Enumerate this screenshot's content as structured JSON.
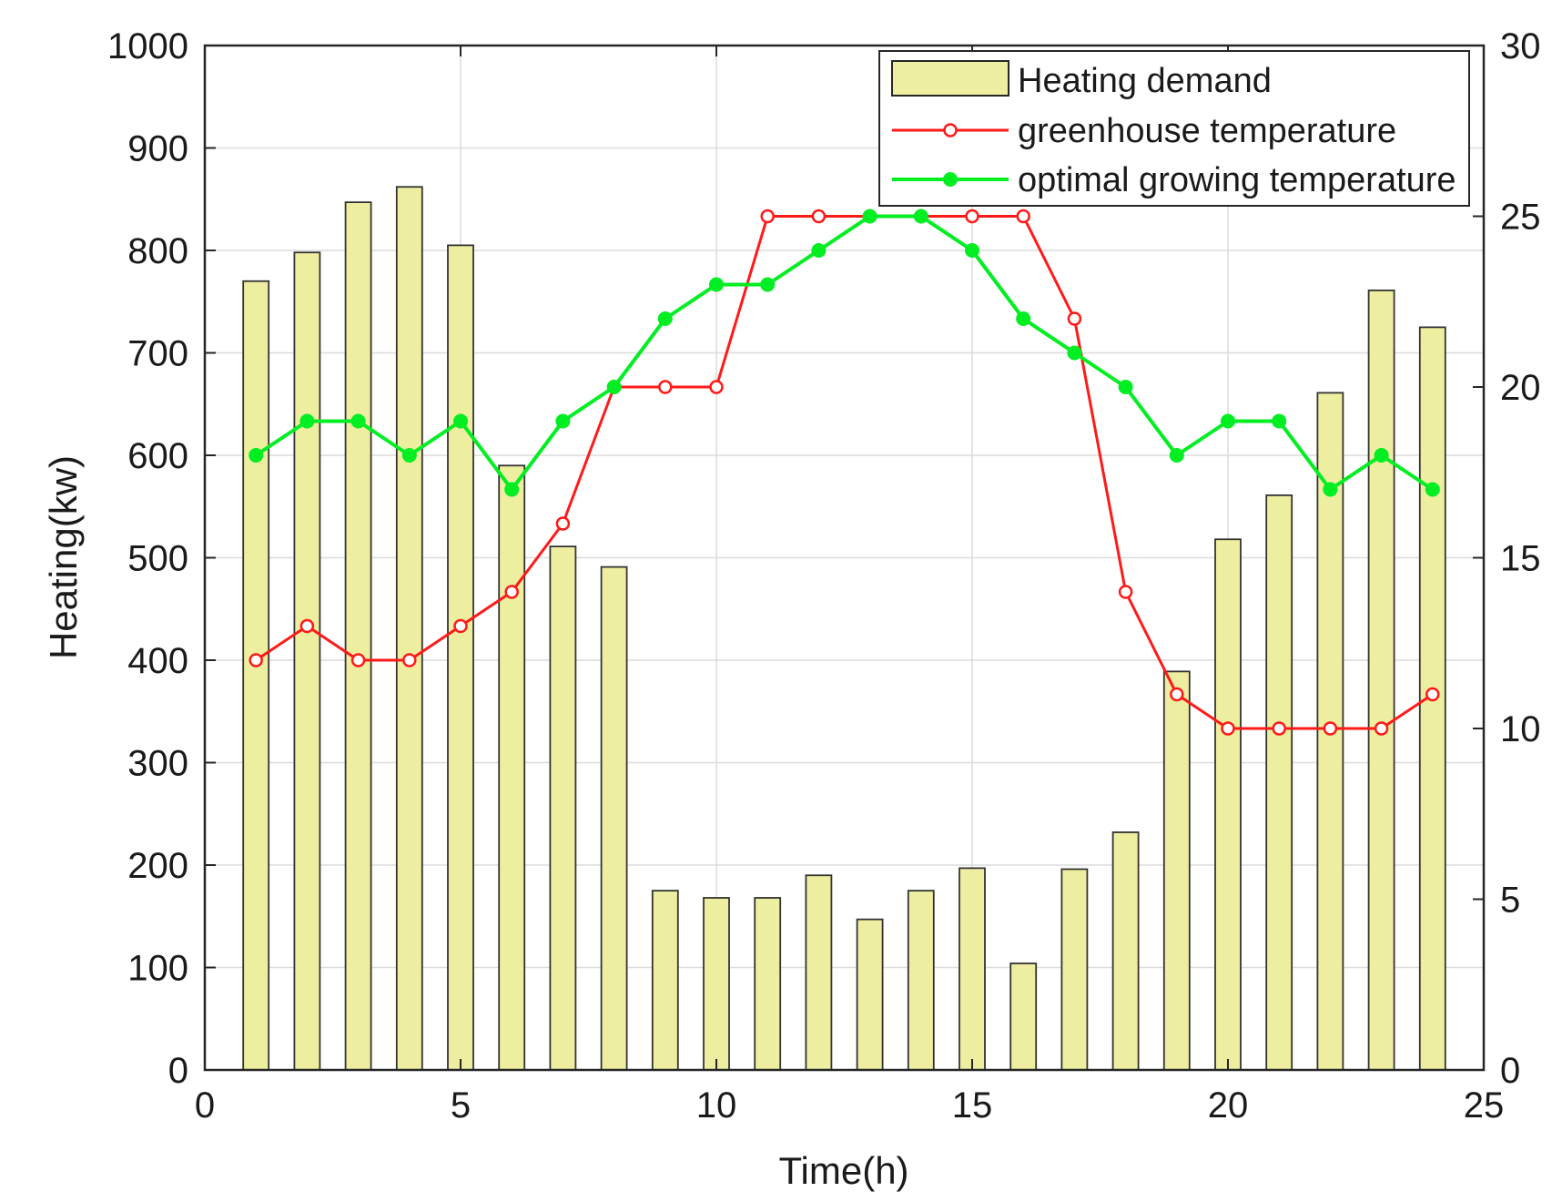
{
  "chart_data": {
    "type": "bar+line",
    "title": "",
    "xlabel": "Time(h)",
    "ylabel": "Heating(kw)",
    "y2label": "",
    "xlim": [
      0,
      25
    ],
    "ylim": [
      0,
      1000
    ],
    "y2lim": [
      0,
      30
    ],
    "xticks": [
      "0",
      "5",
      "10",
      "15",
      "20",
      "25"
    ],
    "yticks": [
      "0",
      "100",
      "200",
      "300",
      "400",
      "500",
      "600",
      "700",
      "800",
      "900",
      "1000"
    ],
    "y2ticks": [
      "0",
      "5",
      "10",
      "15",
      "20",
      "25",
      "30"
    ],
    "grid": true,
    "legend_position": "top-right",
    "x": [
      1,
      2,
      3,
      4,
      5,
      6,
      7,
      8,
      9,
      10,
      11,
      12,
      13,
      14,
      15,
      16,
      17,
      18,
      19,
      20,
      21,
      22,
      23,
      24
    ],
    "series": [
      {
        "name": "Heating demand",
        "type": "bar",
        "axis": "left",
        "color": "#eeeea0",
        "edge_color": "#333333",
        "values": [
          770,
          798,
          847,
          862,
          805,
          590,
          511,
          491,
          175,
          168,
          168,
          190,
          147,
          175,
          197,
          104,
          196,
          232,
          389,
          518,
          561,
          661,
          761,
          725
        ]
      },
      {
        "name": "greenhouse temperature",
        "type": "line",
        "axis": "right",
        "color": "#ff1a1a",
        "marker": "open-circle",
        "values": [
          12,
          13,
          12,
          12,
          13,
          14,
          16,
          20,
          20,
          20,
          25,
          25,
          25,
          25,
          25,
          25,
          22,
          14,
          11,
          10,
          10,
          10,
          10,
          11
        ]
      },
      {
        "name": "optimal growing temperature",
        "type": "line",
        "axis": "right",
        "color": "#00ee22",
        "marker": "filled-circle",
        "values": [
          18,
          19,
          19,
          18,
          19,
          17,
          19,
          20,
          22,
          23,
          23,
          24,
          25,
          25,
          24,
          22,
          21,
          20,
          18,
          19,
          19,
          17,
          18,
          17
        ]
      }
    ]
  }
}
